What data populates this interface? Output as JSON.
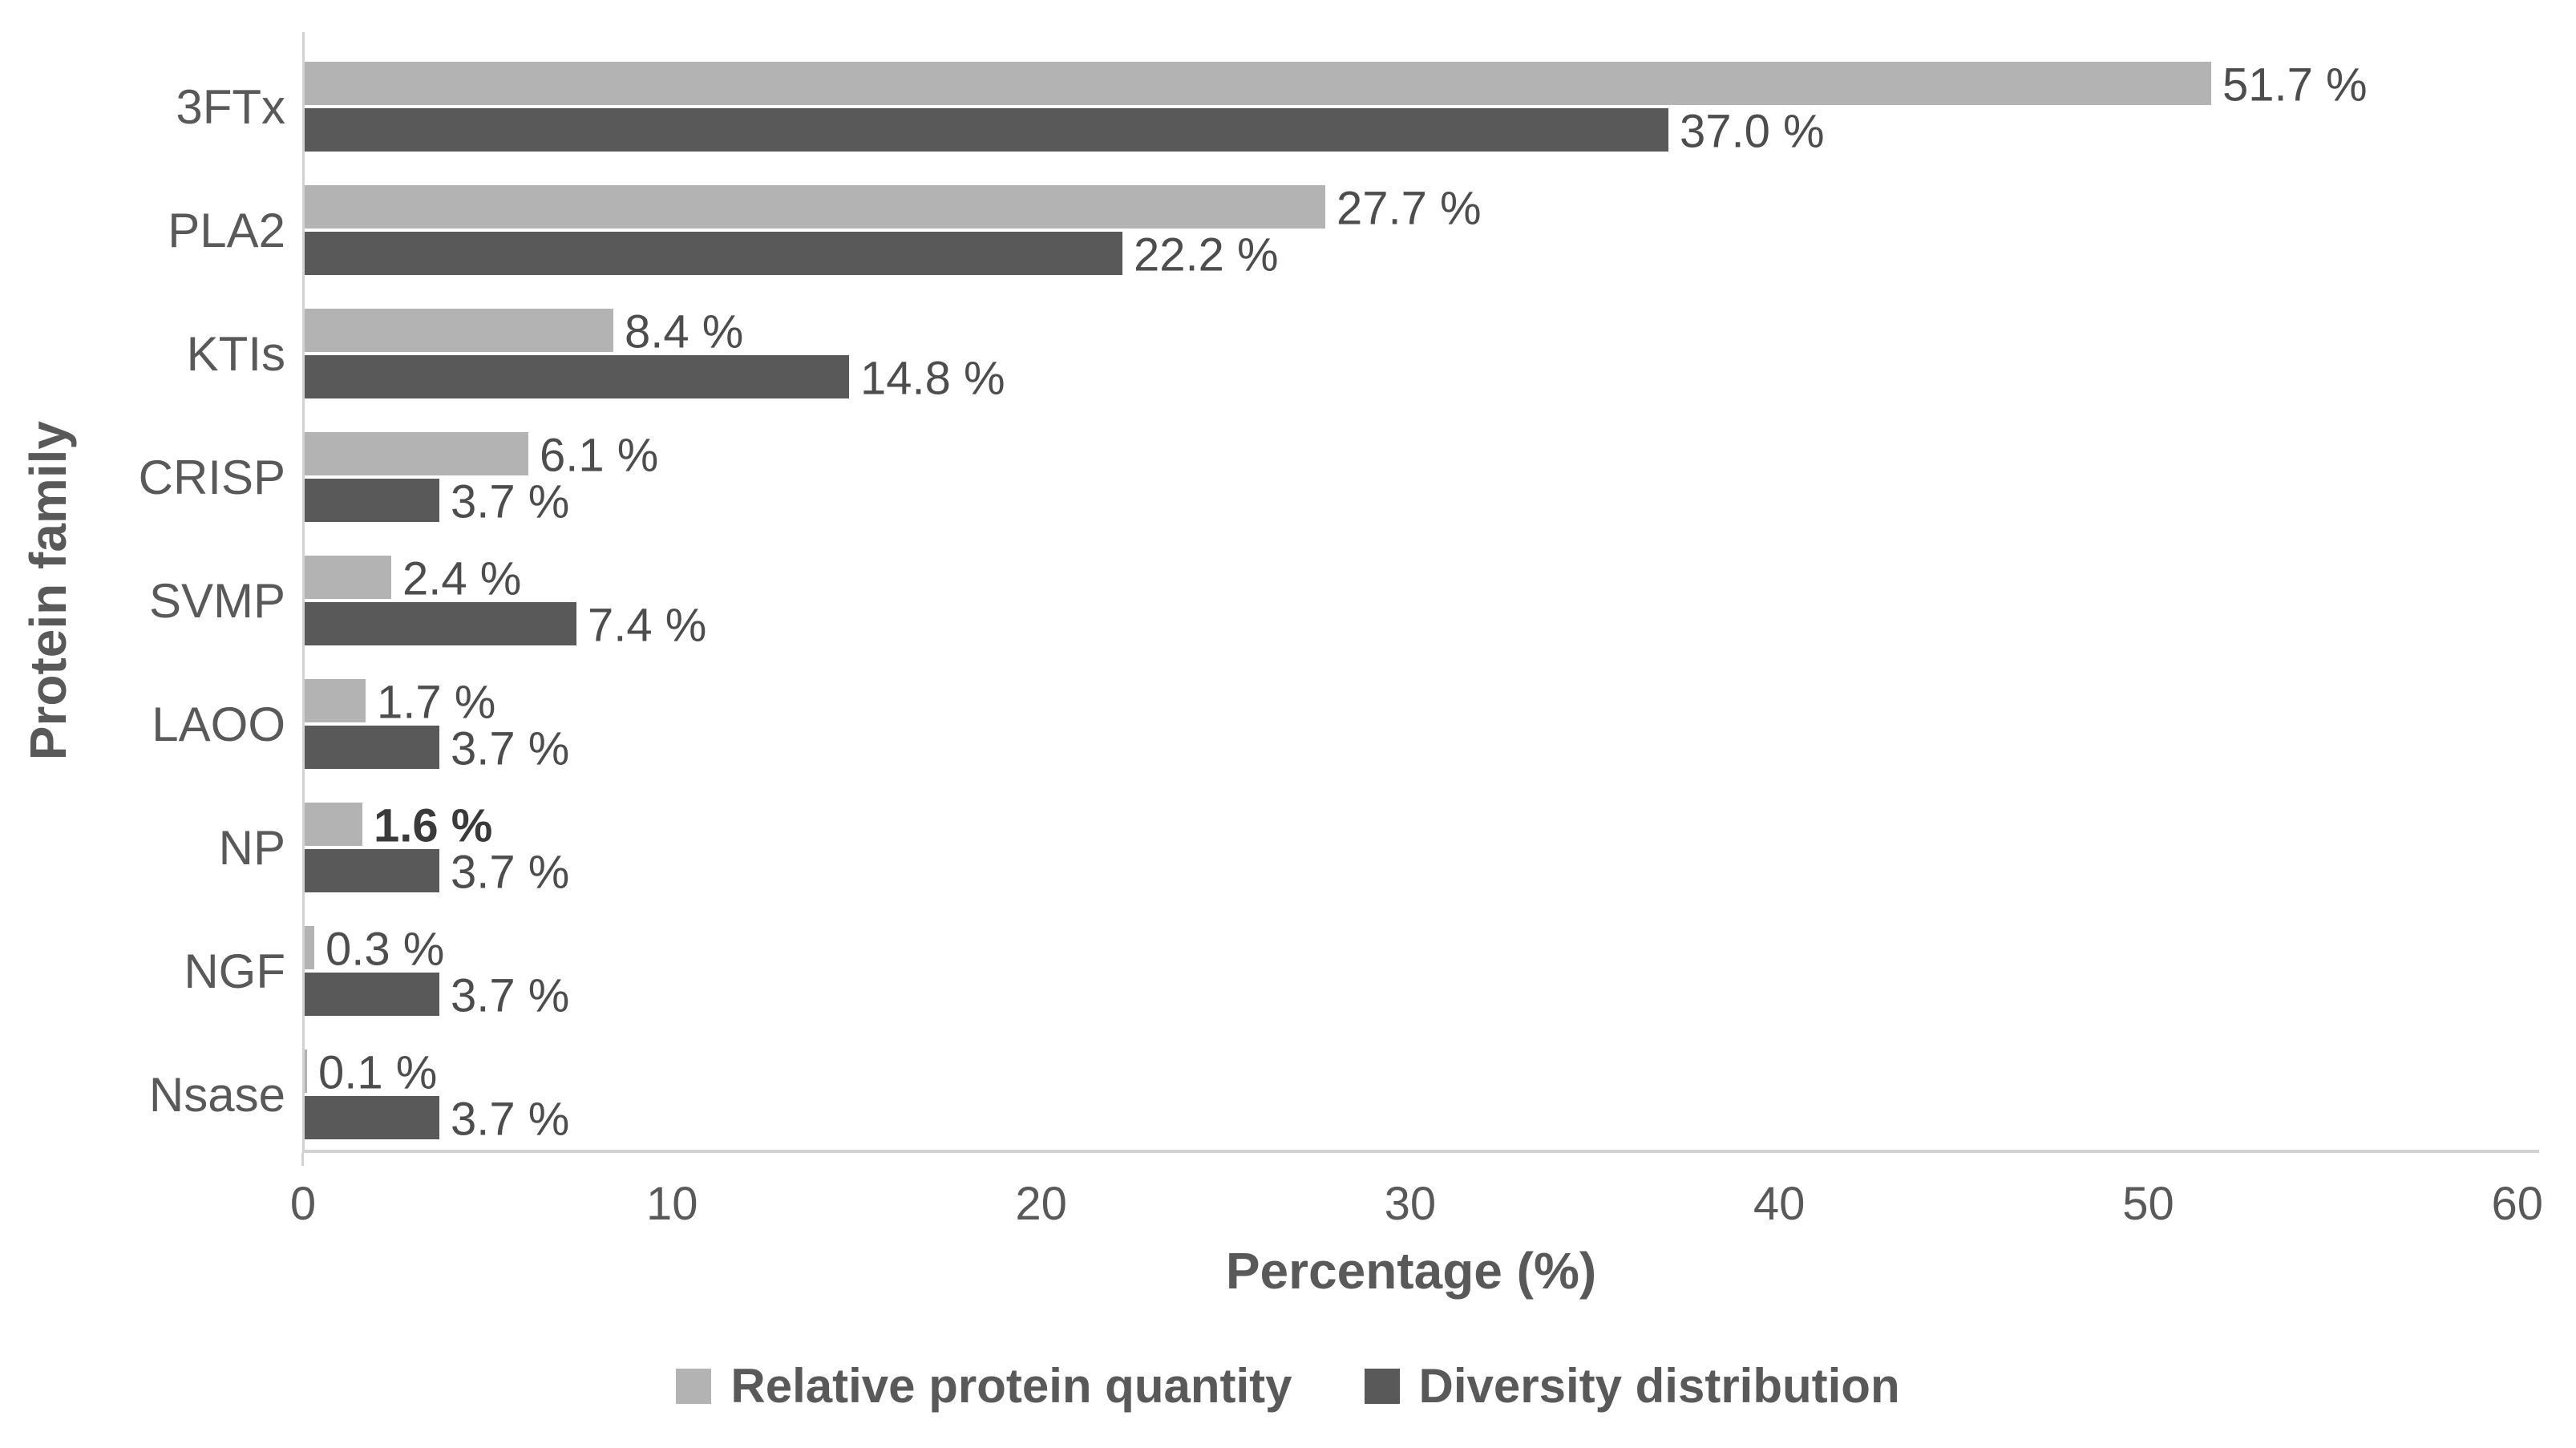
{
  "chart_data": {
    "type": "bar",
    "orientation": "horizontal",
    "title": "",
    "xlabel": "Percentage (%)",
    "ylabel": "Protein family",
    "xlim": [
      0,
      60
    ],
    "xticks": [
      "0",
      "10",
      "20",
      "30",
      "40",
      "50",
      "60"
    ],
    "grid": false,
    "legend_position": "bottom",
    "categories": [
      "3FTx",
      "PLA2",
      "KTIs",
      "CRISP",
      "SVMP",
      "LAOO",
      "NP",
      "NGF",
      "Nsase"
    ],
    "series": [
      {
        "name": "Relative protein quantity",
        "color": "#b3b3b3",
        "values": [
          51.7,
          27.7,
          8.4,
          6.1,
          2.4,
          1.7,
          1.6,
          0.3,
          0.1
        ],
        "labels": [
          "51.7 %",
          "27.7 %",
          "8.4 %",
          "6.1 %",
          "2.4 %",
          "1.7 %",
          "1.6 %",
          "0.3 %",
          "0.1 %"
        ],
        "bold_value_label_indices": [
          6
        ]
      },
      {
        "name": "Diversity distribution",
        "color": "#595959",
        "values": [
          37.0,
          22.2,
          14.8,
          3.7,
          7.4,
          3.7,
          3.7,
          3.7,
          3.7
        ],
        "labels": [
          "37.0 %",
          "22.2 %",
          "14.8 %",
          "3.7 %",
          "7.4 %",
          "3.7 %",
          "3.7 %",
          "3.7 %",
          "3.7 %"
        ],
        "bold_value_label_indices": []
      }
    ],
    "colors": {
      "axis_line": "#d2d2d2",
      "axis_text": "#595959",
      "value_text": "#4d4d4d",
      "background": "#ffffff"
    }
  }
}
